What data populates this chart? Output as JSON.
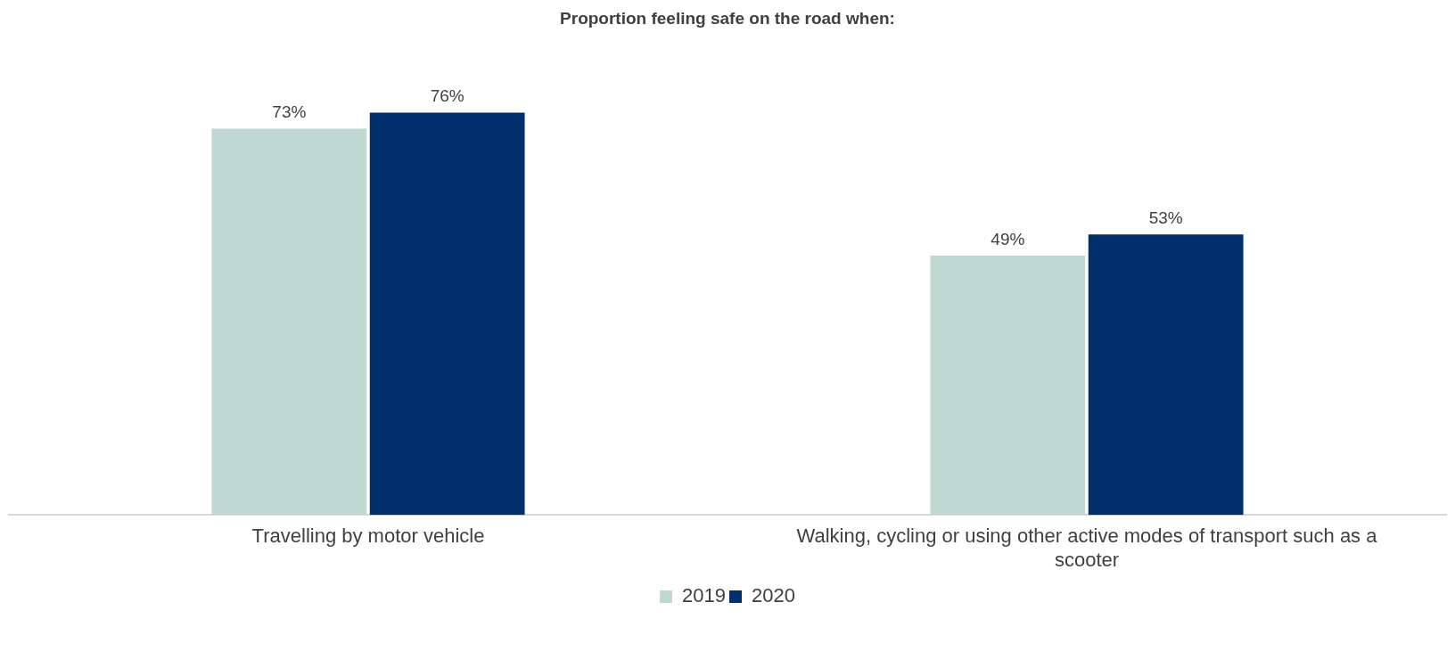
{
  "chart_data": {
    "type": "bar",
    "title": "Proportion feeling safe on the road when:",
    "categories": [
      "Travelling by motor vehicle",
      "Walking, cycling or using other active modes of transport such as a scooter"
    ],
    "series": [
      {
        "name": "2019",
        "color": "#c0d8d2",
        "values": [
          73,
          49
        ],
        "value_labels": [
          "73%",
          "49%"
        ]
      },
      {
        "name": "2020",
        "color": "#002f6c",
        "values": [
          76,
          53
        ],
        "value_labels": [
          "76%",
          "53%"
        ]
      }
    ],
    "legend": "bottom",
    "grid": false,
    "tick_labels": "x"
  }
}
